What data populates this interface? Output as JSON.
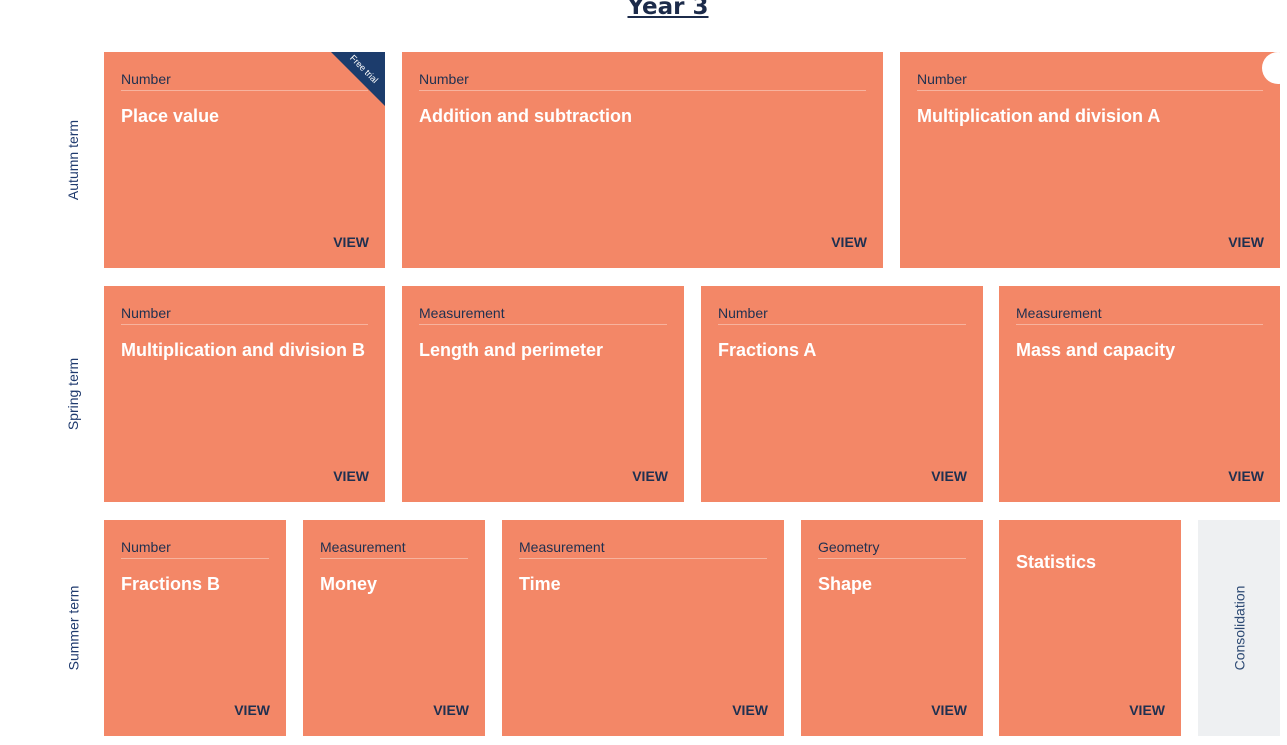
{
  "page": {
    "title": "Year 3"
  },
  "terms": [
    "Autumn term",
    "Spring term",
    "Summer term"
  ],
  "view_label": "VIEW",
  "free_trial_label": "Free trial",
  "consolidation_label": "Consolidation",
  "blocks": {
    "autumn": [
      {
        "category": "Number",
        "title": "Place value"
      },
      {
        "category": "Number",
        "title": "Addition and subtraction"
      },
      {
        "category": "Number",
        "title": "Multiplication and division A"
      }
    ],
    "spring": [
      {
        "category": "Number",
        "title": "Multiplication and division B"
      },
      {
        "category": "Measurement",
        "title": "Length and perimeter"
      },
      {
        "category": "Number",
        "title": "Fractions A"
      },
      {
        "category": "Measurement",
        "title": "Mass and capacity"
      }
    ],
    "summer": [
      {
        "category": "Number",
        "title": "Fractions B"
      },
      {
        "category": "Measurement",
        "title": "Money"
      },
      {
        "category": "Measurement",
        "title": "Time"
      },
      {
        "category": "Geometry",
        "title": "Shape"
      },
      {
        "category": "",
        "title": "Statistics"
      }
    ]
  },
  "colors": {
    "card": "#f38767",
    "navy": "#1f3050",
    "ribbon": "#1c3c6c",
    "consolidation_bg": "#eef0f2"
  }
}
